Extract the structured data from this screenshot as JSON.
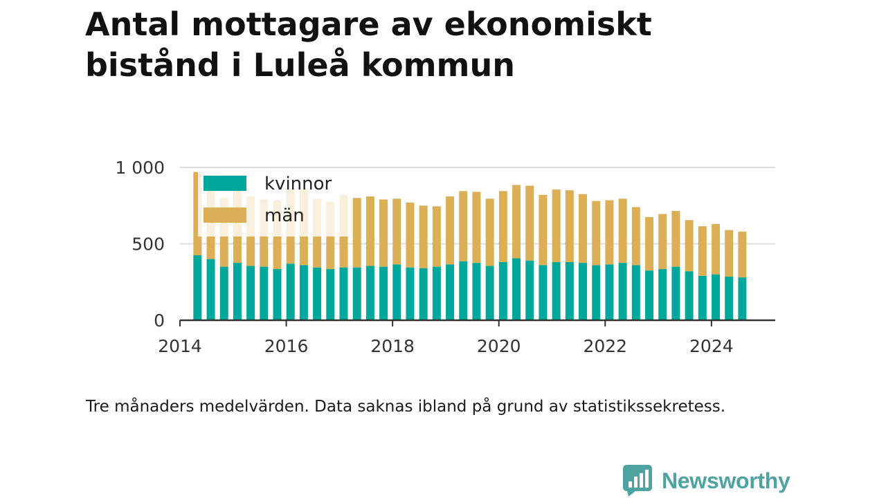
{
  "title": "Antal mottagare av ekonomiskt bistånd i Luleå kommun",
  "footnote": "Tre månaders medelvärden. Data saknas ibland på grund av statistikssekretess.",
  "brand": {
    "name": "Newsworthy",
    "icon": "newsworthy-logo-icon",
    "color": "#4ea3a0"
  },
  "chart_data": {
    "type": "bar",
    "stacked": true,
    "title": "",
    "xlabel": "",
    "ylabel": "",
    "ylim": [
      0,
      1000
    ],
    "yticks": [
      0,
      500,
      1000
    ],
    "ytick_labels": [
      "0",
      "500",
      "1 000"
    ],
    "xlim": [
      2014.0,
      2025.2
    ],
    "xticks": [
      2014,
      2016,
      2018,
      2020,
      2022,
      2024
    ],
    "xtick_labels": [
      "2014",
      "2016",
      "2018",
      "2020",
      "2022",
      "2024"
    ],
    "grid": "horizontal",
    "legend_position": "top-left",
    "x": [
      2014.33,
      2014.58,
      2014.83,
      2015.08,
      2015.33,
      2015.58,
      2015.83,
      2016.08,
      2016.33,
      2016.58,
      2016.83,
      2017.08,
      2017.33,
      2017.58,
      2017.83,
      2018.08,
      2018.33,
      2018.58,
      2018.83,
      2019.08,
      2019.33,
      2019.58,
      2019.83,
      2020.08,
      2020.33,
      2020.58,
      2020.83,
      2021.08,
      2021.33,
      2021.58,
      2021.83,
      2022.08,
      2022.33,
      2022.58,
      2022.83,
      2023.08,
      2023.33,
      2023.58,
      2023.83,
      2024.08,
      2024.33,
      2024.58
    ],
    "series": [
      {
        "name": "kvinnor",
        "color": "#00a79a",
        "values": [
          425,
          400,
          350,
          375,
          355,
          350,
          335,
          370,
          360,
          345,
          335,
          345,
          345,
          355,
          350,
          365,
          345,
          340,
          350,
          365,
          385,
          375,
          355,
          380,
          405,
          390,
          360,
          380,
          380,
          375,
          360,
          365,
          375,
          360,
          325,
          335,
          350,
          320,
          290,
          300,
          285,
          280
        ]
      },
      {
        "name": "män",
        "color": "#dbae58",
        "values": [
          545,
          470,
          450,
          490,
          455,
          440,
          450,
          485,
          495,
          450,
          440,
          475,
          455,
          455,
          440,
          430,
          425,
          410,
          395,
          445,
          460,
          465,
          440,
          465,
          480,
          490,
          460,
          475,
          470,
          450,
          420,
          420,
          420,
          380,
          350,
          360,
          365,
          335,
          325,
          330,
          305,
          300
        ]
      }
    ]
  }
}
